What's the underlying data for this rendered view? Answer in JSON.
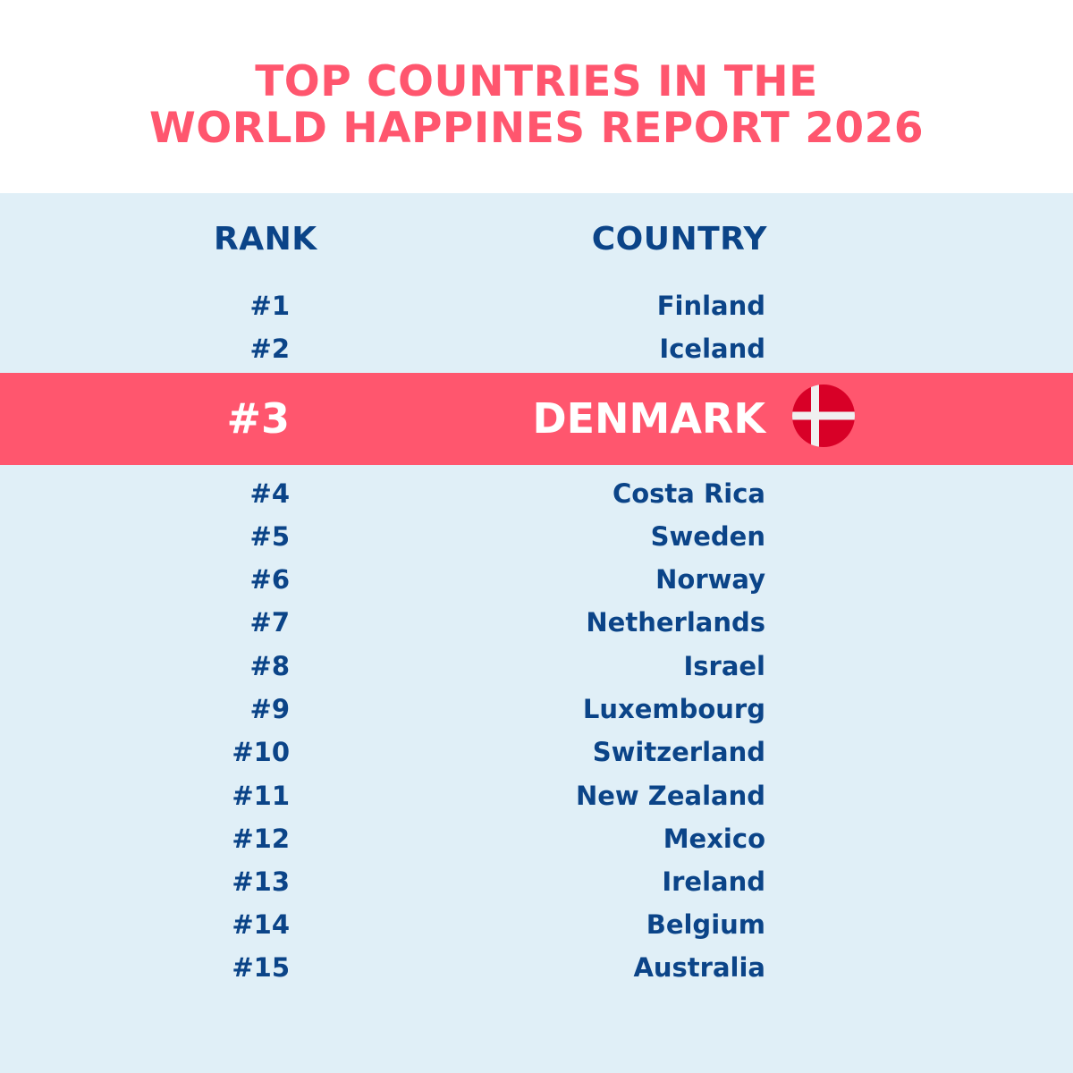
{
  "title": {
    "line1": "TOP COUNTRIES IN THE",
    "line2": "WORLD HAPPINES REPORT 2026"
  },
  "columns": {
    "rank": "RANK",
    "country": "COUNTRY"
  },
  "highlight": {
    "rank": "#3",
    "country": "DENMARK",
    "flag_icon": "denmark-flag-icon",
    "flag_colors": {
      "red": "#d80027",
      "cross": "#f0f0f0"
    }
  },
  "rows_top": [
    {
      "rank": "#1",
      "country": "Finland"
    },
    {
      "rank": "#2",
      "country": "Iceland"
    }
  ],
  "rows_bottom": [
    {
      "rank": "#4",
      "country": "Costa Rica"
    },
    {
      "rank": "#5",
      "country": "Sweden"
    },
    {
      "rank": "#6",
      "country": "Norway"
    },
    {
      "rank": "#7",
      "country": "Netherlands"
    },
    {
      "rank": "#8",
      "country": "Israel"
    },
    {
      "rank": "#9",
      "country": "Luxembourg"
    },
    {
      "rank": "#10",
      "country": "Switzerland"
    },
    {
      "rank": "#11",
      "country": "New Zealand"
    },
    {
      "rank": "#12",
      "country": "Mexico"
    },
    {
      "rank": "#13",
      "country": "Ireland"
    },
    {
      "rank": "#14",
      "country": "Belgium"
    },
    {
      "rank": "#15",
      "country": "Australia"
    }
  ],
  "colors": {
    "accent": "#ff566e",
    "text": "#0b4488",
    "panel": "#e0eff7"
  }
}
